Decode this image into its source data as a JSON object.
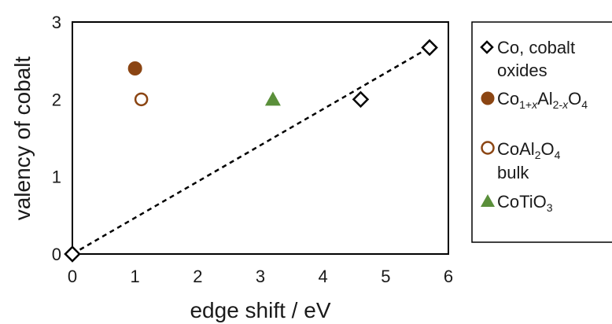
{
  "chart_data": {
    "type": "scatter",
    "title": "",
    "xlabel": "edge shift / eV",
    "ylabel": "valency of cobalt",
    "xlim": [
      0,
      6
    ],
    "ylim": [
      0,
      3
    ],
    "xticks": [
      "0",
      "1",
      "2",
      "3",
      "4",
      "5",
      "6"
    ],
    "yticks": [
      "0",
      "1",
      "2",
      "3"
    ],
    "grid": false,
    "legend_position": "right",
    "series": [
      {
        "name": "Co, cobalt oxides",
        "marker": "open-diamond",
        "color": "#000000",
        "points": [
          {
            "x": 0.0,
            "y": 0.0
          },
          {
            "x": 4.6,
            "y": 2.0
          },
          {
            "x": 5.7,
            "y": 2.67
          }
        ]
      },
      {
        "name": "Co1+xAl2-xO4",
        "marker": "filled-circle",
        "color": "#8b4513",
        "points": [
          {
            "x": 1.0,
            "y": 2.4
          }
        ]
      },
      {
        "name": "CoAl2O4 bulk",
        "marker": "open-circle",
        "color": "#8b4513",
        "points": [
          {
            "x": 1.1,
            "y": 2.0
          }
        ]
      },
      {
        "name": "CoTiO3",
        "marker": "filled-triangle",
        "color": "#5a8f3a",
        "points": [
          {
            "x": 3.2,
            "y": 2.0
          }
        ]
      }
    ],
    "fit_line": {
      "style": "dashed",
      "color": "#000000",
      "from": {
        "x": 0.0,
        "y": 0.0
      },
      "to": {
        "x": 5.7,
        "y": 2.67
      }
    }
  },
  "legend": {
    "co_oxides_line1": "Co, cobalt",
    "co_oxides_line2": "oxides",
    "cotio3_main": "CoTiO",
    "cotio3_sub": "3",
    "coal2o4_main1": "CoAl",
    "coal2o4_sub1": "2",
    "coal2o4_main2": "O",
    "coal2o4_sub2": "4",
    "coal2o4_line2": "bulk",
    "co1x_main1": "Co",
    "co1x_sub1a": "1+",
    "co1x_sub1b": "x",
    "co1x_main2": "Al",
    "co1x_sub2a": "2-",
    "co1x_sub2b": "x",
    "co1x_main3": "O",
    "co1x_sub3": "4"
  }
}
